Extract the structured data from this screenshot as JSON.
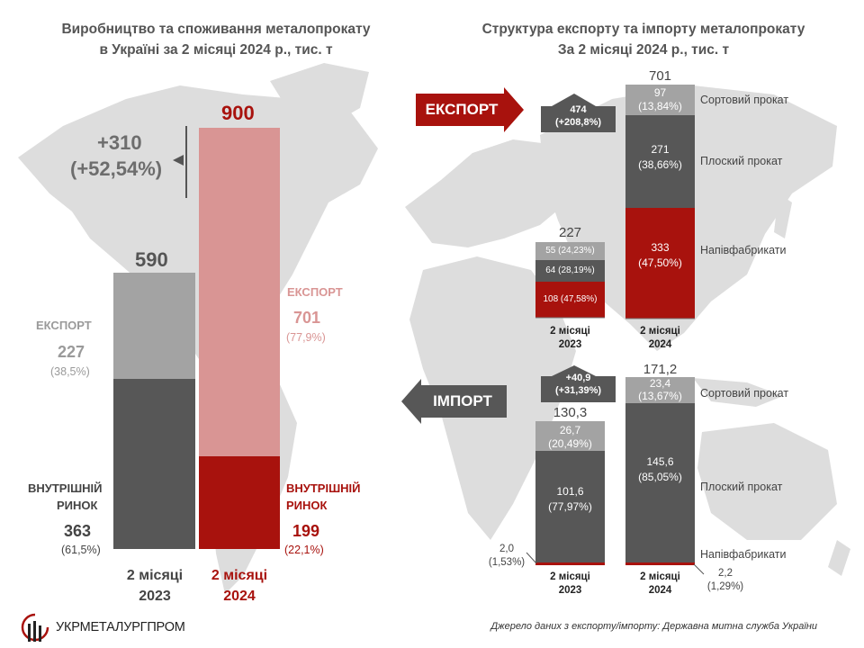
{
  "left": {
    "title_line1": "Виробництво та споживання металопрокату",
    "title_line2": "в Україні за 2 місяці 2024 р., тис. т",
    "change_value": "+310",
    "change_pct": "(+52,54%)",
    "export_label": "ЕКСПОРТ",
    "domestic_label_line1": "ВНУТРІШНІЙ",
    "domestic_label_line2": "РИНОК",
    "year_2023_line1": "2 місяці",
    "year_2023_line2": "2023",
    "year_2024_line1": "2 місяці",
    "year_2024_line2": "2024",
    "total_2023": "590",
    "total_2024": "900",
    "export_2023": "227",
    "export_2023_pct": "(38,5%)",
    "domestic_2023": "363",
    "domestic_2023_pct": "(61,5%)",
    "export_2024": "701",
    "export_2024_pct": "(77,9%)",
    "domestic_2024": "199",
    "domestic_2024_pct": "(22,1%)"
  },
  "right": {
    "title_line1": "Структура експорту та імпорту металопрокату",
    "title_line2": "За 2 місяці 2024 р., тис. т",
    "export_arrow_label": "ЕКСПОРТ",
    "import_arrow_label": "ІМПОРТ",
    "export_change_line1": "474",
    "export_change_line2": "(+208,8%)",
    "import_change_line1": "+40,9",
    "import_change_line2": "(+31,39%)",
    "product_long": "Сортовий прокат",
    "product_flat": "Плоский прокат",
    "product_semi": "Напівфабрикати",
    "export_total_2023": "227",
    "export_total_2024": "701",
    "import_total_2023": "130,3",
    "import_total_2024": "171,2",
    "period_2023_line1": "2 місяці",
    "period_2023_line2": "2023",
    "period_2024_line1": "2 місяці",
    "period_2024_line2": "2024",
    "exp23_long": "55 (24,23%)",
    "exp23_flat": "64 (28,19%)",
    "exp23_semi": "108 (47,58%)",
    "exp24_long_v": "97",
    "exp24_long_p": "(13,84%)",
    "exp24_flat_v": "271",
    "exp24_flat_p": "(38,66%)",
    "exp24_semi_v": "333",
    "exp24_semi_p": "(47,50%)",
    "imp23_long_v": "26,7",
    "imp23_long_p": "(20,49%)",
    "imp23_flat_v": "101,6",
    "imp23_flat_p": "(77,97%)",
    "imp23_semi_v": "2,0",
    "imp23_semi_p": "(1,53%)",
    "imp24_long_v": "23,4",
    "imp24_long_p": "(13,67%)",
    "imp24_flat_v": "145,6",
    "imp24_flat_p": "(85,05%)",
    "imp24_semi_v": "2,2",
    "imp24_semi_p": "(1,29%)"
  },
  "footer": {
    "logo_text": "УКРМЕТАЛУРГПРОМ",
    "source": "Джерело даних з експорту/імпорту: Державна митна служба України"
  },
  "colors": {
    "dark_gray": "#575757",
    "mid_gray": "#a3a3a3",
    "pink": "#d99594",
    "red": "#a8120d",
    "map": "#dcdcdc"
  },
  "chart_data": [
    {
      "type": "bar",
      "stacked": true,
      "title": "Виробництво та споживання металопрокату в Україні за 2 місяці 2024 р., тис. т",
      "categories": [
        "2 місяці 2023",
        "2 місяці 2024"
      ],
      "series": [
        {
          "name": "ВНУТРІШНІЙ РИНОК",
          "values": [
            363,
            199
          ]
        },
        {
          "name": "ЕКСПОРТ",
          "values": [
            227,
            701
          ]
        }
      ],
      "totals": [
        590,
        900
      ],
      "ylim": [
        0,
        900
      ]
    },
    {
      "type": "bar",
      "stacked": true,
      "title": "Структура експорту металопрокату (ЕКСПОРТ), тис. т",
      "categories": [
        "2 місяці 2023",
        "2 місяці 2024"
      ],
      "series": [
        {
          "name": "Напівфабрикати",
          "values": [
            108,
            333
          ]
        },
        {
          "name": "Плоский прокат",
          "values": [
            64,
            271
          ]
        },
        {
          "name": "Сортовий прокат",
          "values": [
            55,
            97
          ]
        }
      ],
      "totals": [
        227,
        701
      ]
    },
    {
      "type": "bar",
      "stacked": true,
      "title": "Структура імпорту металопрокату (ІМПОРТ), тис. т",
      "categories": [
        "2 місяці 2023",
        "2 місяці 2024"
      ],
      "series": [
        {
          "name": "Напівфабрикати",
          "values": [
            2.0,
            2.2
          ]
        },
        {
          "name": "Плоский прокат",
          "values": [
            101.6,
            145.6
          ]
        },
        {
          "name": "Сортовий прокат",
          "values": [
            26.7,
            23.4
          ]
        }
      ],
      "totals": [
        130.3,
        171.2
      ]
    }
  ]
}
